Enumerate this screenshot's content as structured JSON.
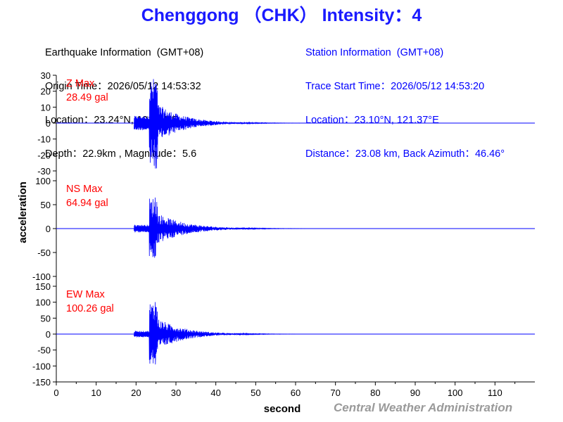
{
  "title": "Chenggong （CHK） Intensity：4",
  "earthquake": {
    "header": "Earthquake Information  (GMT+08)",
    "origin_time": "Origin Time：2026/05/12 14:53:32",
    "location": "Location：23.24°N, 121.54°E",
    "depth_magnitude": "Depth：22.9km , Magnitude：5.6"
  },
  "station": {
    "header": "Station Information  (GMT+08)",
    "trace_start": "Trace Start Time：2026/05/12 14:53:20",
    "location": "Location：23.10°N, 121.37°E",
    "distance": "Distance：23.08 km, Back Azimuth：46.46°"
  },
  "credit": "Central Weather Administration",
  "colors": {
    "trace": "#0000ff",
    "max_label": "#ff0000",
    "title": "#1a1aff",
    "credit": "#9a9a9a"
  },
  "chart_data": {
    "type": "line",
    "xlabel": "second",
    "ylabel": "acceleration",
    "xlim": [
      0,
      120
    ],
    "xticks": [
      0,
      10,
      20,
      30,
      40,
      50,
      60,
      70,
      80,
      90,
      100,
      110
    ],
    "grid": false,
    "panels": [
      {
        "name": "Z",
        "max_label": "Z Max",
        "max_value": "28.49 gal",
        "ylim": [
          -30,
          30
        ],
        "yticks": [
          30,
          20,
          10,
          0,
          -10,
          -20,
          -30
        ],
        "envelope": {
          "onset": 19.5,
          "peak_time": 24.8,
          "peak_pos": 24.5,
          "peak_neg": -28.5,
          "end": 88,
          "pre_amp": 4.5,
          "coda_decay": 6.5
        }
      },
      {
        "name": "NS",
        "max_label": "NS Max",
        "max_value": "64.94 gal",
        "ylim": [
          -100,
          100
        ],
        "yticks": [
          100,
          50,
          0,
          -50,
          -100
        ],
        "envelope": {
          "onset": 19.5,
          "peak_time": 24.8,
          "peak_pos": 64.9,
          "peak_neg": -55,
          "end": 65,
          "pre_amp": 8,
          "coda_decay": 7
        }
      },
      {
        "name": "EW",
        "max_label": "EW Max",
        "max_value": "100.26 gal",
        "ylim": [
          -150,
          150
        ],
        "yticks": [
          150,
          100,
          50,
          0,
          -50,
          -100,
          -150
        ],
        "envelope": {
          "onset": 19.5,
          "peak_time": 24.8,
          "peak_pos": 100.3,
          "peak_neg": -95,
          "end": 60,
          "pre_amp": 10,
          "coda_decay": 6.5
        }
      }
    ]
  }
}
